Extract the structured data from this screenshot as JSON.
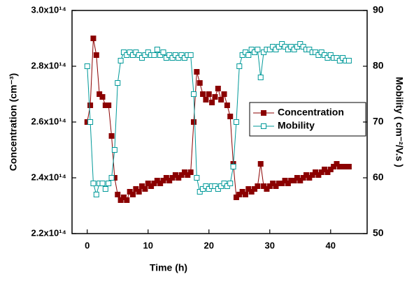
{
  "chart_data": {
    "type": "line",
    "x_label": "Time (h)",
    "y_label": "Concentration (cm⁻³)",
    "y2_label": "Mobility ( cm⁻²/V.s )",
    "x": [
      0,
      0.5,
      1,
      1.5,
      2,
      2.5,
      3,
      3.5,
      4,
      4.5,
      5,
      5.5,
      6,
      6.5,
      7,
      7.5,
      8,
      8.5,
      9,
      9.5,
      10,
      10.5,
      11,
      11.5,
      12,
      12.5,
      13,
      13.5,
      14,
      14.5,
      15,
      15.5,
      16,
      16.5,
      17,
      17.5,
      18,
      18.5,
      19,
      19.5,
      20,
      20.5,
      21,
      21.5,
      22,
      22.5,
      23,
      23.5,
      24,
      24.5,
      25,
      25.5,
      26,
      26.5,
      27,
      27.5,
      28,
      28.5,
      29,
      29.5,
      30,
      30.5,
      31,
      31.5,
      32,
      32.5,
      33,
      33.5,
      34,
      34.5,
      35,
      35.5,
      36,
      36.5,
      37,
      37.5,
      38,
      38.5,
      39,
      39.5,
      40,
      40.5,
      41,
      41.5,
      42,
      42.5,
      43
    ],
    "series": [
      {
        "name": "Concentration",
        "color": "#8b0000",
        "marker": "filled-square",
        "values": [
          260000000000000.0,
          266000000000000.0,
          290000000000000.0,
          284000000000000.0,
          270000000000000.0,
          269000000000000.0,
          266000000000000.0,
          266000000000000.0,
          255000000000000.0,
          240000000000000.0,
          234000000000000.0,
          232000000000000.0,
          233000000000000.0,
          232000000000000.0,
          235000000000000.0,
          234000000000000.0,
          236000000000000.0,
          235000000000000.0,
          237000000000000.0,
          236000000000000.0,
          238000000000000.0,
          237000000000000.0,
          238000000000000.0,
          239000000000000.0,
          238000000000000.0,
          239000000000000.0,
          240000000000000.0,
          239000000000000.0,
          240000000000000.0,
          241000000000000.0,
          240000000000000.0,
          241000000000000.0,
          242000000000000.0,
          241000000000000.0,
          242000000000000.0,
          260000000000000.0,
          278000000000000.0,
          274000000000000.0,
          270000000000000.0,
          268000000000000.0,
          270000000000000.0,
          267000000000000.0,
          269000000000000.0,
          272000000000000.0,
          268000000000000.0,
          270000000000000.0,
          266000000000000.0,
          262000000000000.0,
          245000000000000.0,
          233000000000000.0,
          234000000000000.0,
          235000000000000.0,
          234000000000000.0,
          236000000000000.0,
          235000000000000.0,
          236000000000000.0,
          237000000000000.0,
          245000000000000.0,
          237000000000000.0,
          236000000000000.0,
          237000000000000.0,
          238000000000000.0,
          237000000000000.0,
          238000000000000.0,
          238000000000000.0,
          239000000000000.0,
          238000000000000.0,
          239000000000000.0,
          239000000000000.0,
          240000000000000.0,
          239000000000000.0,
          240000000000000.0,
          241000000000000.0,
          240000000000000.0,
          241000000000000.0,
          242000000000000.0,
          241000000000000.0,
          242000000000000.0,
          243000000000000.0,
          242000000000000.0,
          243000000000000.0,
          244000000000000.0,
          245000000000000.0,
          244000000000000.0,
          244000000000000.0,
          244000000000000.0,
          244000000000000.0
        ]
      },
      {
        "name": "Mobility",
        "color": "#009999",
        "marker": "open-square",
        "axis": "y2",
        "values": [
          80,
          70,
          59,
          57,
          59,
          59,
          58,
          59,
          60,
          65,
          77,
          81,
          82.5,
          82,
          82.5,
          82,
          82.5,
          82,
          81.5,
          82,
          82.5,
          82,
          82,
          83,
          82,
          82.5,
          81.5,
          82,
          81.5,
          82,
          81.5,
          82,
          81.5,
          82,
          82,
          75,
          60,
          57.5,
          58,
          58.5,
          58,
          58.5,
          58.5,
          58,
          58.5,
          59,
          58.5,
          59,
          62,
          70,
          80,
          82,
          82.5,
          82,
          83,
          82.5,
          83,
          78,
          82.5,
          83,
          83,
          83.5,
          83,
          83.5,
          84,
          83.5,
          83,
          83.5,
          83,
          83.5,
          84,
          83.5,
          83,
          83,
          82.5,
          82.5,
          82,
          82.5,
          82,
          81.5,
          82,
          81.5,
          81.5,
          81,
          81.5,
          81,
          81
        ]
      }
    ],
    "xlim": [
      -2.5,
      46
    ],
    "xticks": [
      0,
      10,
      20,
      30,
      40
    ],
    "ylim": [
      220000000000000.0,
      300000000000000.0
    ],
    "yticks": [
      {
        "value": 220000000000000.0,
        "label": "2.2x10¹⁴"
      },
      {
        "value": 240000000000000.0,
        "label": "2.4x10¹⁴"
      },
      {
        "value": 260000000000000.0,
        "label": "2.6x10¹⁴"
      },
      {
        "value": 280000000000000.0,
        "label": "2.8x10¹⁴"
      },
      {
        "value": 300000000000000.0,
        "label": "3.0x10¹⁴"
      }
    ],
    "y2lim": [
      50,
      90
    ],
    "y2ticks": [
      50,
      60,
      70,
      80,
      90
    ],
    "legend": "right"
  }
}
